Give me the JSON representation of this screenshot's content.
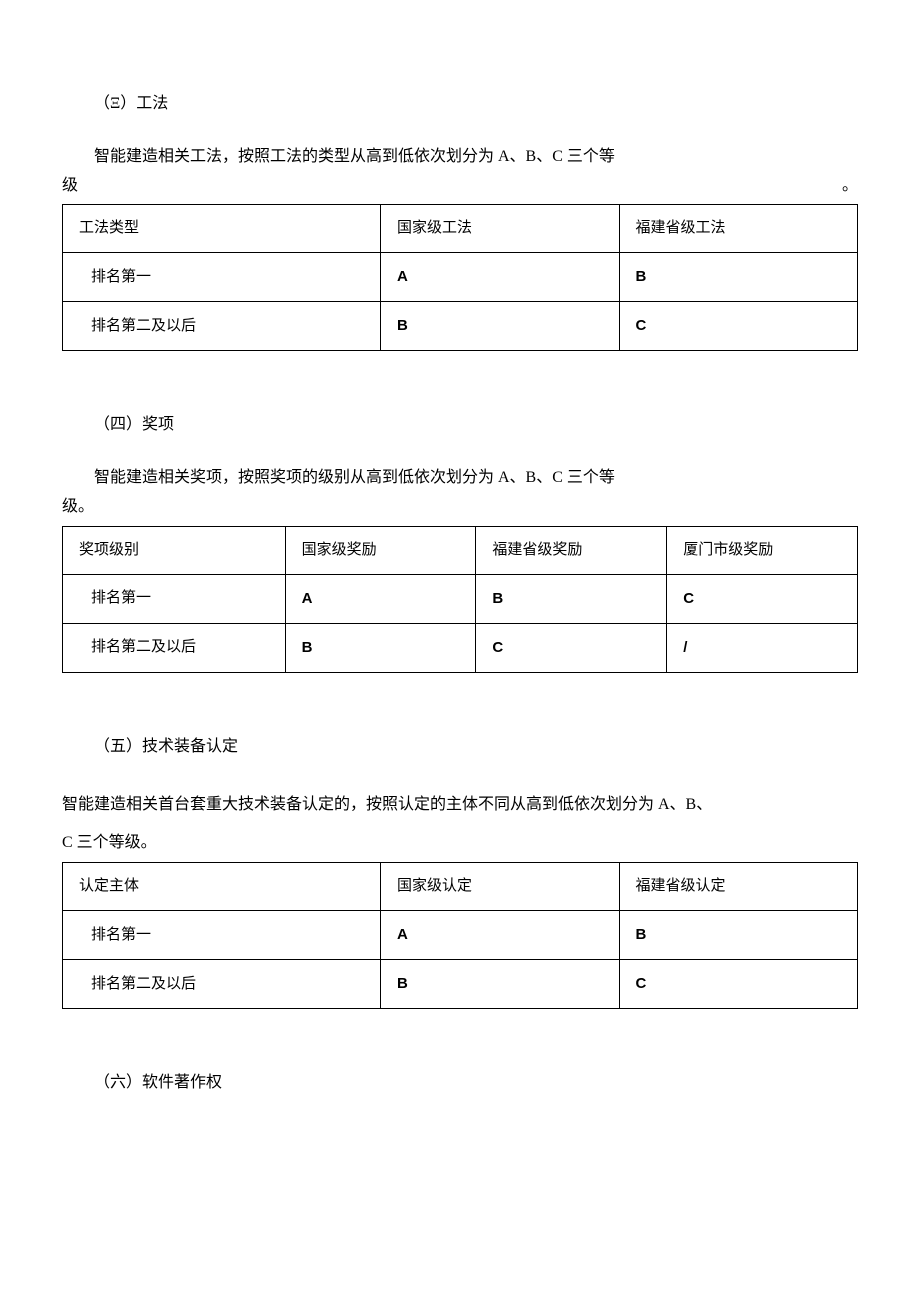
{
  "sections": {
    "s3": {
      "title": "（Ξ）工法",
      "desc_line": "智能建造相关工法，按照工法的类型从高到低依次划分为 A、B、C 三个等",
      "suffix": "级",
      "period": "。",
      "table": {
        "headers": [
          "工法类型",
          "国家级工法",
          "福建省级工法"
        ],
        "rows": [
          {
            "label": "排名第一",
            "c1": "A",
            "c2": "B"
          },
          {
            "label": "排名第二及以后",
            "c1": "B",
            "c2": "C"
          }
        ]
      }
    },
    "s4": {
      "title": "（四）奖项",
      "desc_line": "智能建造相关奖项，按照奖项的级别从高到低依次划分为 A、B、C 三个等",
      "suffix": "级。",
      "table": {
        "headers": [
          "奖项级别",
          "国家级奖励",
          "福建省级奖励",
          "厦门市级奖励"
        ],
        "rows": [
          {
            "label": "排名第一",
            "c1": "A",
            "c2": "B",
            "c3": "C"
          },
          {
            "label": "排名第二及以后",
            "c1": "B",
            "c2": "C",
            "c3": "/"
          }
        ]
      }
    },
    "s5": {
      "title": "（五）技术装备认定",
      "desc_line1": "智能建造相关首台套重大技术装备认定的，按照认定的主体不同从高到低依次划分为 A、B、",
      "desc_line2": "C 三个等级。",
      "table": {
        "headers": [
          "认定主体",
          "国家级认定",
          "福建省级认定"
        ],
        "rows": [
          {
            "label": "排名第一",
            "c1": "A",
            "c2": "B"
          },
          {
            "label": "排名第二及以后",
            "c1": "B",
            "c2": "C"
          }
        ]
      }
    },
    "s6": {
      "title": "（六）软件著作权"
    }
  }
}
